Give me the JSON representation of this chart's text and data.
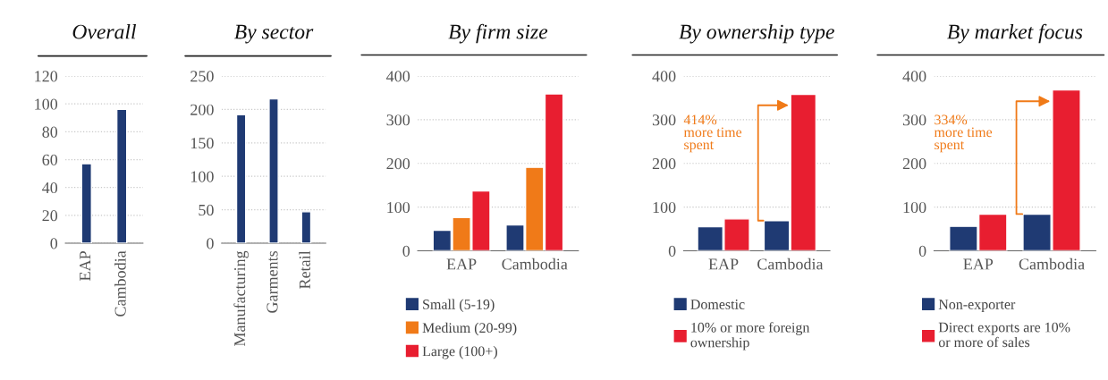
{
  "chart_data": [
    {
      "type": "bar",
      "title": "Overall",
      "categories": [
        "EAP",
        "Cambodia"
      ],
      "values": [
        57,
        96
      ],
      "color": "#1f3a73",
      "ylim": [
        0,
        120
      ],
      "yticks": [
        0,
        20,
        40,
        60,
        80,
        100,
        120
      ],
      "grid": "y"
    },
    {
      "type": "bar",
      "title": "By sector",
      "categories": [
        "Manufacturing",
        "Garments",
        "Retail"
      ],
      "values": [
        192,
        216,
        47
      ],
      "color": "#1f3a73",
      "ylim": [
        0,
        250
      ],
      "yticks": [
        0,
        50,
        100,
        150,
        200,
        250
      ],
      "grid": "y"
    },
    {
      "type": "bar",
      "title": "By firm size",
      "categories": [
        "EAP",
        "Cambodia"
      ],
      "series": [
        {
          "name": "Small (5-19)",
          "color": "#1f3a73",
          "values": [
            47,
            59
          ]
        },
        {
          "name": "Medium (20-99)",
          "color": "#f07a18",
          "values": [
            76,
            191
          ]
        },
        {
          "name": "Large (100+)",
          "color": "#e81e30",
          "values": [
            137,
            359
          ]
        }
      ],
      "ylim": [
        0,
        400
      ],
      "yticks": [
        0,
        100,
        200,
        300,
        400
      ],
      "grid": "y",
      "legend": "bottom"
    },
    {
      "type": "bar",
      "title": "By ownership type",
      "categories": [
        "EAP",
        "Cambodia"
      ],
      "series": [
        {
          "name": "Domestic",
          "color": "#1f3a73",
          "values": [
            55,
            69
          ]
        },
        {
          "name": "10% or more foreign ownership",
          "color": "#e81e30",
          "values": [
            73,
            358
          ]
        }
      ],
      "ylim": [
        0,
        400
      ],
      "yticks": [
        0,
        100,
        200,
        300,
        400
      ],
      "grid": "y",
      "legend": "bottom",
      "annotations": [
        "414%\nmore time\nspent"
      ]
    },
    {
      "type": "bar",
      "title": "By market focus",
      "categories": [
        "EAP",
        "Cambodia"
      ],
      "series": [
        {
          "name": "Non-exporter",
          "color": "#1f3a73",
          "values": [
            56,
            84
          ]
        },
        {
          "name": "Direct exports are 10% or more of sales",
          "color": "#e81e30",
          "values": [
            84,
            368
          ]
        }
      ],
      "ylim": [
        0,
        400
      ],
      "yticks": [
        0,
        100,
        200,
        300,
        400
      ],
      "grid": "y",
      "legend": "bottom",
      "annotations": [
        "334%\nmore time\nspent"
      ]
    }
  ]
}
